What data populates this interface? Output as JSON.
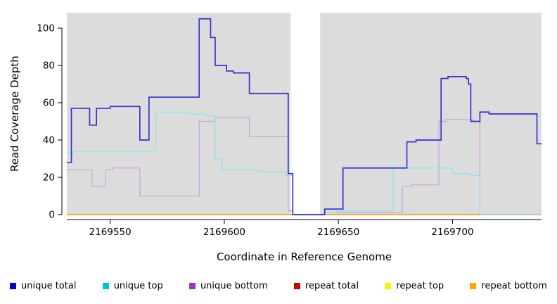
{
  "chart_data": {
    "type": "line",
    "step": "after",
    "title": "",
    "xlabel": "Coordinate in Reference Genome",
    "ylabel": "Read Coverage Depth",
    "xlim": [
      2169531,
      2169739
    ],
    "ylim": [
      0,
      106
    ],
    "xticks": [
      2169550,
      2169600,
      2169650,
      2169700
    ],
    "yticks": [
      0,
      20,
      40,
      60,
      80,
      100
    ],
    "grid": false,
    "legend_position": "bottom",
    "background_regions": [
      {
        "x0": 2169531,
        "x1": 2169629,
        "color": "#DCDCDC"
      },
      {
        "x0": 2169642,
        "x1": 2169739,
        "color": "#DCDCDC"
      }
    ],
    "series": [
      {
        "name": "repeat total",
        "color": "#CC0000",
        "points": [
          [
            2169531,
            0
          ]
        ]
      },
      {
        "name": "repeat top",
        "color": "#F5F500",
        "points": [
          [
            2169531,
            0
          ]
        ]
      },
      {
        "name": "repeat bottom",
        "color": "#FFA500",
        "points": [
          [
            2169531,
            0
          ]
        ]
      },
      {
        "name": "unique bottom",
        "color": "#CDA4DE",
        "points": [
          [
            2169531,
            24
          ],
          [
            2169542,
            15
          ],
          [
            2169548,
            24
          ],
          [
            2169551,
            25
          ],
          [
            2169563,
            10
          ],
          [
            2169589,
            50
          ],
          [
            2169596,
            52
          ],
          [
            2169611,
            42
          ],
          [
            2169628,
            2
          ],
          [
            2169630,
            0
          ],
          [
            2169644,
            1
          ],
          [
            2169678,
            15
          ],
          [
            2169682,
            16
          ],
          [
            2169694,
            50
          ],
          [
            2169697,
            51
          ],
          [
            2169709,
            50
          ],
          [
            2169712,
            0
          ]
        ]
      },
      {
        "name": "unique top",
        "color": "#8BE5EA",
        "points": [
          [
            2169531,
            33
          ],
          [
            2169534,
            34
          ],
          [
            2169570,
            55
          ],
          [
            2169585,
            54
          ],
          [
            2169592,
            53
          ],
          [
            2169596,
            30
          ],
          [
            2169599,
            24
          ],
          [
            2169615,
            23
          ],
          [
            2169627,
            21
          ],
          [
            2169630,
            0
          ],
          [
            2169644,
            1
          ],
          [
            2169649,
            2
          ],
          [
            2169674,
            25
          ],
          [
            2169700,
            22
          ],
          [
            2169708,
            21
          ],
          [
            2169712,
            0
          ]
        ]
      },
      {
        "name": "unique total",
        "color": "#3333CC",
        "points": [
          [
            2169531,
            28
          ],
          [
            2169533,
            57
          ],
          [
            2169541,
            48
          ],
          [
            2169544,
            57
          ],
          [
            2169550,
            58
          ],
          [
            2169563,
            40
          ],
          [
            2169567,
            63
          ],
          [
            2169589,
            105
          ],
          [
            2169594,
            95
          ],
          [
            2169596,
            80
          ],
          [
            2169601,
            77
          ],
          [
            2169604,
            76
          ],
          [
            2169611,
            65
          ],
          [
            2169628,
            22
          ],
          [
            2169630,
            0
          ],
          [
            2169644,
            3
          ],
          [
            2169652,
            25
          ],
          [
            2169680,
            39
          ],
          [
            2169684,
            40
          ],
          [
            2169695,
            73
          ],
          [
            2169698,
            74
          ],
          [
            2169706,
            73
          ],
          [
            2169707,
            70
          ],
          [
            2169708,
            50
          ],
          [
            2169712,
            55
          ],
          [
            2169716,
            54
          ],
          [
            2169737,
            38
          ]
        ]
      }
    ],
    "legend": [
      {
        "label": "unique total",
        "color": "#0000CC"
      },
      {
        "label": "unique top",
        "color": "#00C5CD"
      },
      {
        "label": "unique bottom",
        "color": "#9933CC"
      },
      {
        "label": "repeat total",
        "color": "#CC0000"
      },
      {
        "label": "repeat top",
        "color": "#F5F500"
      },
      {
        "label": "repeat bottom",
        "color": "#FFA500"
      }
    ]
  }
}
